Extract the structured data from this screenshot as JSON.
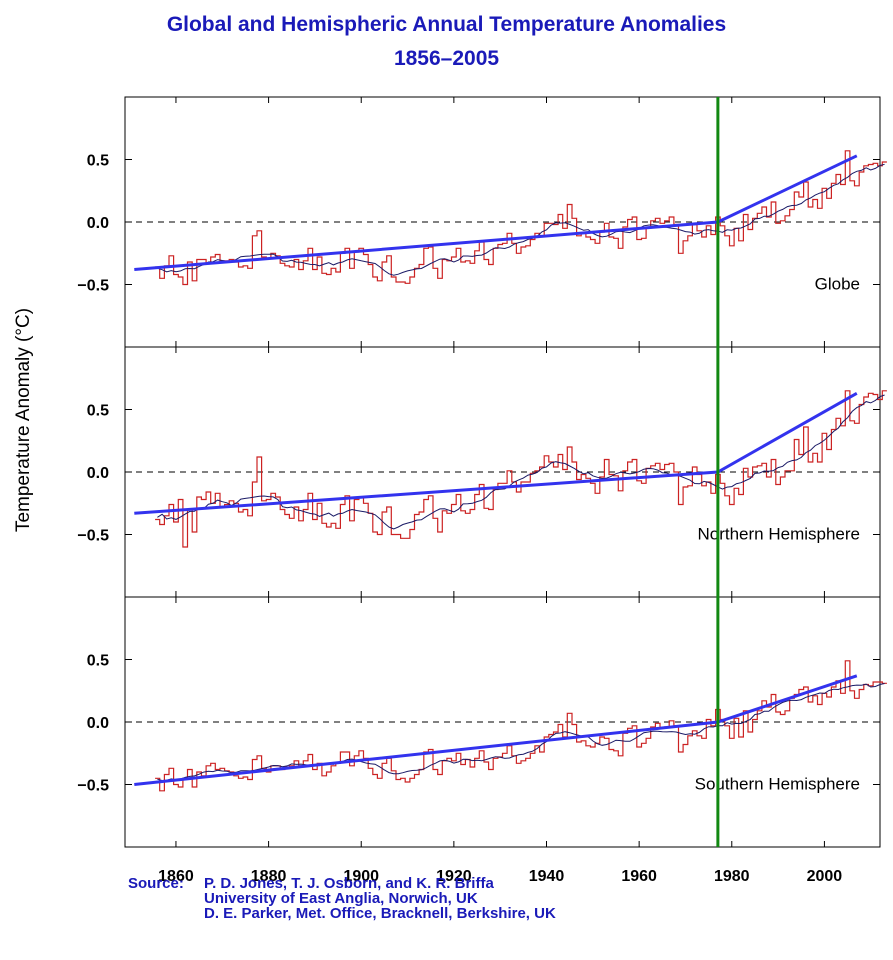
{
  "title_line1": "Global and Hemispheric Annual Temperature Anomalies",
  "title_line2": "1856–2005",
  "source": {
    "label": "Source:",
    "line1": "P. D. Jones, T. J. Osborn, and K. R. Briffa",
    "line2": "University of East Anglia, Norwich, UK",
    "line3": "D. E. Parker, Met. Office, Bracknell, Berkshire, UK"
  },
  "colors": {
    "title": "#1a1ab8",
    "annual": "#cc2222",
    "smooth": "#1a1a66",
    "trend": "#3333ee",
    "marker": "#118811"
  },
  "chart_data": {
    "type": "line",
    "ylabel": "Temperature Anomaly (°C)",
    "xlim": [
      1849,
      2012
    ],
    "ylim": [
      -1.0,
      1.0
    ],
    "xticks": [
      1860,
      1880,
      1900,
      1920,
      1940,
      1960,
      1980,
      2000
    ],
    "yticks": [
      -0.5,
      0.0,
      0.5
    ],
    "ytick_labels": [
      "−0.5",
      "0.0",
      "0.5"
    ],
    "vertical_line_x": 1977,
    "panels": [
      {
        "label": "Globe",
        "start_year": 1856,
        "annual": [
          -0.36,
          -0.45,
          -0.35,
          -0.27,
          -0.42,
          -0.44,
          -0.5,
          -0.32,
          -0.47,
          -0.3,
          -0.3,
          -0.33,
          -0.28,
          -0.26,
          -0.31,
          -0.31,
          -0.3,
          -0.32,
          -0.36,
          -0.35,
          -0.37,
          -0.11,
          -0.07,
          -0.28,
          -0.29,
          -0.25,
          -0.27,
          -0.33,
          -0.35,
          -0.36,
          -0.3,
          -0.38,
          -0.31,
          -0.21,
          -0.38,
          -0.28,
          -0.41,
          -0.42,
          -0.37,
          -0.4,
          -0.25,
          -0.21,
          -0.37,
          -0.24,
          -0.21,
          -0.26,
          -0.34,
          -0.44,
          -0.47,
          -0.32,
          -0.27,
          -0.44,
          -0.48,
          -0.48,
          -0.49,
          -0.44,
          -0.37,
          -0.34,
          -0.21,
          -0.2,
          -0.37,
          -0.45,
          -0.3,
          -0.31,
          -0.28,
          -0.21,
          -0.32,
          -0.31,
          -0.33,
          -0.23,
          -0.16,
          -0.3,
          -0.34,
          -0.21,
          -0.18,
          -0.17,
          -0.09,
          -0.17,
          -0.25,
          -0.2,
          -0.19,
          -0.14,
          -0.09,
          -0.11,
          -0.01,
          -0.01,
          -0.02,
          0.06,
          -0.05,
          0.14,
          0.03,
          -0.11,
          -0.09,
          -0.12,
          -0.14,
          -0.17,
          -0.08,
          -0.01,
          -0.12,
          -0.13,
          -0.21,
          -0.04,
          0.02,
          0.04,
          -0.14,
          -0.13,
          -0.05,
          0.01,
          0.03,
          -0.01,
          0.01,
          0.04,
          -0.02,
          -0.25,
          -0.15,
          -0.11,
          -0.02,
          -0.07,
          -0.12,
          -0.03,
          -0.1,
          0.04,
          -0.03,
          -0.11,
          -0.19,
          -0.05,
          -0.15,
          0.06,
          -0.06,
          0.03,
          0.07,
          0.12,
          0.04,
          0.16,
          -0.01,
          0.01,
          0.05,
          0.1,
          0.24,
          0.2,
          0.32,
          0.12,
          0.18,
          0.11,
          0.27,
          0.19,
          0.31,
          0.38,
          0.3,
          0.57,
          0.33,
          0.29,
          0.4,
          0.45,
          0.46,
          0.47,
          0.45,
          0.48
        ],
        "trend": [
          [
            1851,
            -0.38
          ],
          [
            1977,
            0.0
          ],
          [
            2007,
            0.53
          ]
        ]
      },
      {
        "label": "Northern Hemisphere",
        "start_year": 1856,
        "annual": [
          -0.38,
          -0.42,
          -0.35,
          -0.26,
          -0.4,
          -0.22,
          -0.6,
          -0.3,
          -0.48,
          -0.2,
          -0.22,
          -0.16,
          -0.25,
          -0.17,
          -0.28,
          -0.26,
          -0.23,
          -0.25,
          -0.32,
          -0.3,
          -0.35,
          -0.08,
          0.12,
          -0.23,
          -0.22,
          -0.17,
          -0.2,
          -0.3,
          -0.34,
          -0.37,
          -0.28,
          -0.39,
          -0.3,
          -0.17,
          -0.38,
          -0.25,
          -0.41,
          -0.44,
          -0.41,
          -0.45,
          -0.26,
          -0.19,
          -0.39,
          -0.22,
          -0.2,
          -0.25,
          -0.33,
          -0.48,
          -0.5,
          -0.32,
          -0.28,
          -0.5,
          -0.5,
          -0.53,
          -0.53,
          -0.46,
          -0.34,
          -0.32,
          -0.22,
          -0.19,
          -0.37,
          -0.48,
          -0.31,
          -0.33,
          -0.26,
          -0.18,
          -0.31,
          -0.33,
          -0.3,
          -0.18,
          -0.1,
          -0.29,
          -0.3,
          -0.14,
          -0.09,
          -0.09,
          0.01,
          -0.08,
          -0.16,
          -0.08,
          -0.08,
          -0.01,
          0.01,
          0.04,
          0.13,
          0.08,
          0.04,
          0.14,
          0.02,
          0.2,
          0.08,
          -0.06,
          -0.02,
          -0.05,
          -0.09,
          -0.17,
          -0.04,
          0.1,
          -0.02,
          -0.03,
          -0.15,
          0.01,
          0.08,
          0.1,
          -0.07,
          -0.09,
          0.03,
          0.05,
          0.07,
          0.02,
          0.06,
          0.07,
          0.0,
          -0.26,
          -0.12,
          -0.11,
          0.04,
          -0.02,
          -0.11,
          -0.08,
          -0.17,
          -0.02,
          -0.09,
          -0.19,
          -0.26,
          -0.13,
          -0.18,
          0.03,
          -0.04,
          0.04,
          0.05,
          0.07,
          -0.04,
          0.1,
          -0.1,
          -0.04,
          0.01,
          0.01,
          0.26,
          0.14,
          0.36,
          0.08,
          0.15,
          0.08,
          0.31,
          0.18,
          0.34,
          0.43,
          0.37,
          0.65,
          0.41,
          0.39,
          0.54,
          0.6,
          0.63,
          0.62,
          0.58,
          0.65
        ],
        "trend": [
          [
            1851,
            -0.33
          ],
          [
            1977,
            0.0
          ],
          [
            2007,
            0.63
          ]
        ]
      },
      {
        "label": "Southern Hemisphere",
        "start_year": 1856,
        "annual": [
          -0.45,
          -0.55,
          -0.42,
          -0.37,
          -0.5,
          -0.52,
          -0.45,
          -0.38,
          -0.52,
          -0.4,
          -0.43,
          -0.35,
          -0.33,
          -0.38,
          -0.37,
          -0.39,
          -0.4,
          -0.43,
          -0.45,
          -0.44,
          -0.46,
          -0.3,
          -0.27,
          -0.37,
          -0.4,
          -0.35,
          -0.35,
          -0.38,
          -0.36,
          -0.35,
          -0.31,
          -0.35,
          -0.31,
          -0.26,
          -0.38,
          -0.33,
          -0.43,
          -0.4,
          -0.35,
          -0.33,
          -0.24,
          -0.24,
          -0.35,
          -0.27,
          -0.23,
          -0.29,
          -0.37,
          -0.42,
          -0.45,
          -0.33,
          -0.29,
          -0.39,
          -0.46,
          -0.45,
          -0.48,
          -0.45,
          -0.42,
          -0.38,
          -0.24,
          -0.22,
          -0.38,
          -0.42,
          -0.31,
          -0.29,
          -0.31,
          -0.25,
          -0.34,
          -0.3,
          -0.36,
          -0.29,
          -0.23,
          -0.32,
          -0.38,
          -0.29,
          -0.28,
          -0.25,
          -0.19,
          -0.27,
          -0.33,
          -0.31,
          -0.29,
          -0.25,
          -0.19,
          -0.24,
          -0.12,
          -0.1,
          -0.08,
          -0.02,
          -0.12,
          0.07,
          -0.02,
          -0.16,
          -0.15,
          -0.19,
          -0.2,
          -0.17,
          -0.12,
          -0.13,
          -0.22,
          -0.23,
          -0.27,
          -0.09,
          -0.05,
          -0.03,
          -0.2,
          -0.17,
          -0.13,
          -0.04,
          -0.01,
          -0.05,
          -0.04,
          0.01,
          -0.03,
          -0.24,
          -0.18,
          -0.11,
          -0.07,
          -0.11,
          -0.13,
          0.02,
          -0.03,
          0.1,
          0.02,
          -0.03,
          -0.13,
          0.03,
          -0.12,
          0.09,
          -0.08,
          0.02,
          0.09,
          0.17,
          0.12,
          0.22,
          0.08,
          0.06,
          0.09,
          0.19,
          0.22,
          0.26,
          0.28,
          0.16,
          0.21,
          0.14,
          0.23,
          0.2,
          0.28,
          0.33,
          0.23,
          0.49,
          0.25,
          0.19,
          0.26,
          0.3,
          0.29,
          0.32,
          0.32,
          0.31
        ],
        "trend": [
          [
            1851,
            -0.5
          ],
          [
            1977,
            0.0
          ],
          [
            2007,
            0.37
          ]
        ]
      }
    ]
  }
}
